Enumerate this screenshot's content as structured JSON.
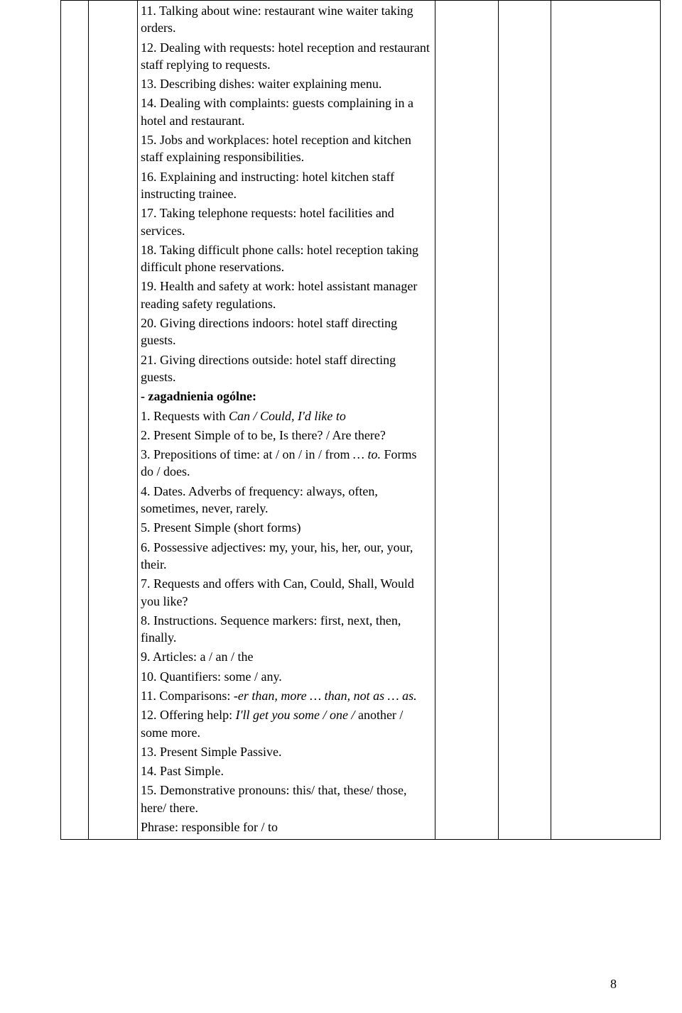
{
  "lines": [
    {
      "text": "11. Talking about wine: restaurant wine waiter taking orders."
    },
    {
      "text": "12. Dealing with requests: hotel reception and restaurant staff replying to requests."
    },
    {
      "text": "13. Describing dishes: waiter explaining menu."
    },
    {
      "text": "14. Dealing with complaints: guests complaining in a hotel and restaurant."
    },
    {
      "text": "15. Jobs and workplaces: hotel reception and kitchen staff explaining responsibilities."
    },
    {
      "text": "16. Explaining and instructing: hotel kitchen staff instructing trainee."
    },
    {
      "text": "17. Taking telephone requests: hotel facilities and services."
    },
    {
      "text": "18. Taking difficult phone calls: hotel reception taking difficult phone reservations."
    },
    {
      "text": "19. Health and safety at work: hotel assistant manager reading safety regulations."
    },
    {
      "text": "20. Giving directions indoors: hotel staff directing guests."
    },
    {
      "text": "21. Giving directions outside: hotel staff directing guests."
    },
    {
      "text": "- zagadnienia ogólne:",
      "bold": true
    },
    {
      "parts": [
        {
          "t": "1. Requests with "
        },
        {
          "t": "Can / Could, I'd like to",
          "i": true
        }
      ]
    },
    {
      "text": "2. Present Simple of to be, Is there? / Are there?"
    },
    {
      "parts": [
        {
          "t": "3. Prepositions of time: at / on / in / from "
        },
        {
          "t": "… to.",
          "i": true
        },
        {
          "t": " Forms do / does."
        }
      ]
    },
    {
      "text": "4. Dates. Adverbs of frequency: always, often, sometimes, never, rarely."
    },
    {
      "text": "5. Present Simple (short forms)"
    },
    {
      "text": "6. Possessive adjectives: my, your, his, her, our, your,  their."
    },
    {
      "text": "7. Requests and offers with Can, Could, Shall, Would you like?"
    },
    {
      "text": "8. Instructions. Sequence markers: first, next, then, finally."
    },
    {
      "text": "9. Articles: a / an / the"
    },
    {
      "text": "10. Quantifiers: some / any."
    },
    {
      "parts": [
        {
          "t": "11. Comparisons: "
        },
        {
          "t": "-er than, more … than, not as … as.",
          "i": true
        }
      ]
    },
    {
      "parts": [
        {
          "t": "12. Offering help: "
        },
        {
          "t": "I'll get you some / one /",
          "i": true
        },
        {
          "t": " another / some more."
        }
      ]
    },
    {
      "text": "13. Present Simple Passive."
    },
    {
      "text": "14. Past Simple."
    },
    {
      "text": "15. Demonstrative pronouns: this/ that, these/ those, here/ there."
    },
    {
      "text": "Phrase: responsible for / to"
    }
  ],
  "pageNumber": "8"
}
